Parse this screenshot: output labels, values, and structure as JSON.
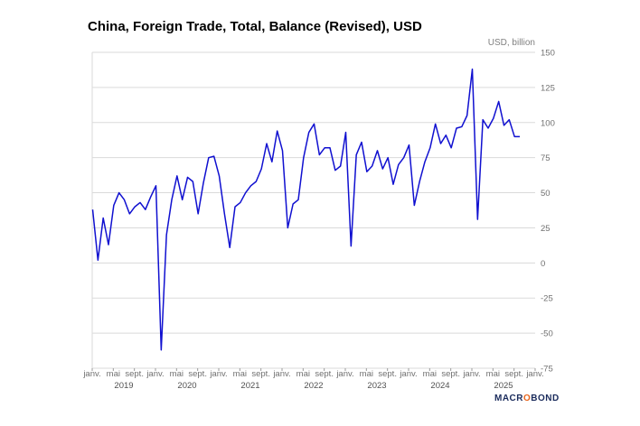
{
  "brand": {
    "pre": "MACR",
    "accent": "O",
    "post": "BOND"
  },
  "chart_data": {
    "type": "line",
    "title": "China, Foreign Trade, Total, Balance (Revised), USD",
    "unit_label": "USD, billion",
    "ylim": [
      -75,
      150
    ],
    "yticks": [
      150,
      125,
      100,
      75,
      50,
      25,
      0,
      -25,
      -50,
      -75
    ],
    "month_labels": [
      "janv.",
      "mai",
      "sept."
    ],
    "years": [
      "2019",
      "2020",
      "2021",
      "2022",
      "2023",
      "2024",
      "2025"
    ],
    "color": "#1010d0",
    "grid": true,
    "series": [
      {
        "x_start": "2019-01",
        "values": [
          38,
          2,
          32,
          13,
          41,
          50,
          45,
          35,
          40,
          43,
          38,
          47,
          55,
          -62,
          20,
          45,
          62,
          45,
          61,
          58,
          35,
          57,
          75,
          76,
          62,
          35,
          11,
          40,
          43,
          50,
          55,
          58,
          67,
          85,
          72,
          94,
          80,
          25,
          42,
          45,
          75,
          93,
          99,
          77,
          82,
          82,
          66,
          69,
          93,
          12,
          77,
          86,
          65,
          69,
          80,
          67,
          75,
          56,
          70,
          75,
          84,
          41,
          58,
          72,
          82,
          99,
          85,
          91,
          82,
          96,
          97,
          105,
          138,
          31,
          102,
          96,
          103,
          115,
          98,
          102,
          90,
          90
        ]
      }
    ]
  }
}
